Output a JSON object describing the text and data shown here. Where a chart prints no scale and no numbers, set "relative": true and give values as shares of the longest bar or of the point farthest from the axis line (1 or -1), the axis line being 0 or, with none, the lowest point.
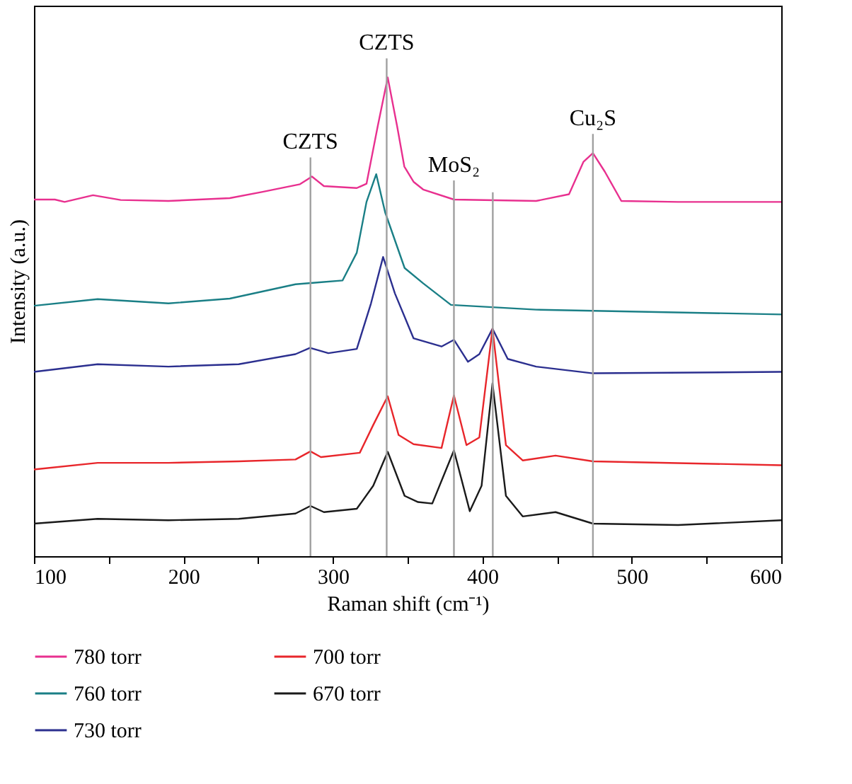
{
  "chart_data": {
    "type": "line",
    "relative": true,
    "xlabel": "Raman shift (cm⁻¹)",
    "ylabel": "Intensity (a.u.)",
    "xlim": [
      100,
      600
    ],
    "xticks": [
      100,
      {
        "value": 150,
        "label": null
      },
      200,
      {
        "value": 250,
        "label": null
      },
      300,
      {
        "value": 350,
        "label": null
      },
      400,
      {
        "value": 450,
        "label": null
      },
      500,
      {
        "value": 550,
        "label": null
      },
      600
    ],
    "tick_labels": "x",
    "grid": false,
    "legend": "bottom",
    "line_style": "solid",
    "marker": "none",
    "series": [
      {
        "name": "780 torr",
        "color": "#e8308f",
        "x": [
          100,
          114,
          120.5,
          139.5,
          158,
          190,
          231,
          253,
          278,
          286,
          294,
          316,
          322.5,
          330,
          336.7,
          343,
          347.8,
          354,
          360.4,
          381,
          436,
          458,
          467.7,
          474,
          482,
          493,
          531,
          600
        ],
        "values": [
          0.745,
          0.745,
          0.74,
          0.754,
          0.744,
          0.742,
          0.748,
          0.761,
          0.777,
          0.793,
          0.773,
          0.769,
          0.778,
          0.898,
          1.0,
          0.898,
          0.814,
          0.782,
          0.766,
          0.745,
          0.742,
          0.756,
          0.824,
          0.842,
          0.803,
          0.742,
          0.74,
          0.74
        ]
      },
      {
        "name": "760 torr",
        "color": "#1a7f86",
        "x": [
          100,
          142.6,
          190,
          231,
          275,
          291,
          306.5,
          316,
          322.5,
          329,
          335,
          348,
          360.4,
          379,
          436,
          600
        ],
        "values": [
          0.523,
          0.537,
          0.528,
          0.538,
          0.568,
          0.572,
          0.576,
          0.634,
          0.74,
          0.798,
          0.718,
          0.602,
          0.57,
          0.525,
          0.515,
          0.505
        ]
      },
      {
        "name": "730 torr",
        "color": "#2b2f8f",
        "x": [
          100,
          142.6,
          190,
          237,
          275,
          284.7,
          297,
          316,
          325.5,
          333.6,
          341.5,
          354,
          372.7,
          381,
          390.4,
          398,
          406.8,
          417,
          436,
          474,
          600
        ],
        "values": [
          0.385,
          0.401,
          0.396,
          0.401,
          0.422,
          0.435,
          0.424,
          0.433,
          0.528,
          0.625,
          0.549,
          0.455,
          0.438,
          0.452,
          0.406,
          0.422,
          0.475,
          0.412,
          0.396,
          0.382,
          0.385
        ]
      },
      {
        "name": "700 torr",
        "color": "#e8262b",
        "x": [
          100,
          142.6,
          190,
          237,
          275,
          285,
          292,
          318,
          327,
          336.7,
          344,
          354,
          372.7,
          381,
          389.4,
          398,
          406.8,
          415.8,
          427,
          449,
          474,
          600
        ],
        "values": [
          0.181,
          0.195,
          0.195,
          0.198,
          0.202,
          0.219,
          0.207,
          0.216,
          0.274,
          0.334,
          0.253,
          0.234,
          0.226,
          0.336,
          0.232,
          0.248,
          0.475,
          0.232,
          0.2,
          0.21,
          0.198,
          0.19
        ]
      },
      {
        "name": "670 torr",
        "color": "#1a1a1a",
        "x": [
          100,
          142.6,
          190,
          237,
          275,
          285,
          294,
          316,
          327,
          336.7,
          348,
          357,
          366.5,
          381,
          391.6,
          399.5,
          406.8,
          415.8,
          427,
          449,
          474,
          531,
          600
        ],
        "values": [
          0.068,
          0.078,
          0.075,
          0.078,
          0.089,
          0.105,
          0.092,
          0.099,
          0.147,
          0.218,
          0.126,
          0.113,
          0.11,
          0.221,
          0.094,
          0.147,
          0.361,
          0.126,
          0.083,
          0.092,
          0.068,
          0.065,
          0.075
        ]
      }
    ],
    "ref_lines": [
      {
        "axis": "x",
        "value": 285,
        "color": "#a0a0a0",
        "label": "CZTS"
      },
      {
        "axis": "x",
        "value": 336,
        "color": "#a0a0a0",
        "label": "CZTS"
      },
      {
        "axis": "x",
        "value": 381,
        "color": "#a0a0a0",
        "label": "MoS₂"
      },
      {
        "axis": "x",
        "value": 407,
        "color": "#a0a0a0"
      },
      {
        "axis": "x",
        "value": 474,
        "color": "#a0a0a0",
        "label": "Cu₂S"
      }
    ]
  }
}
